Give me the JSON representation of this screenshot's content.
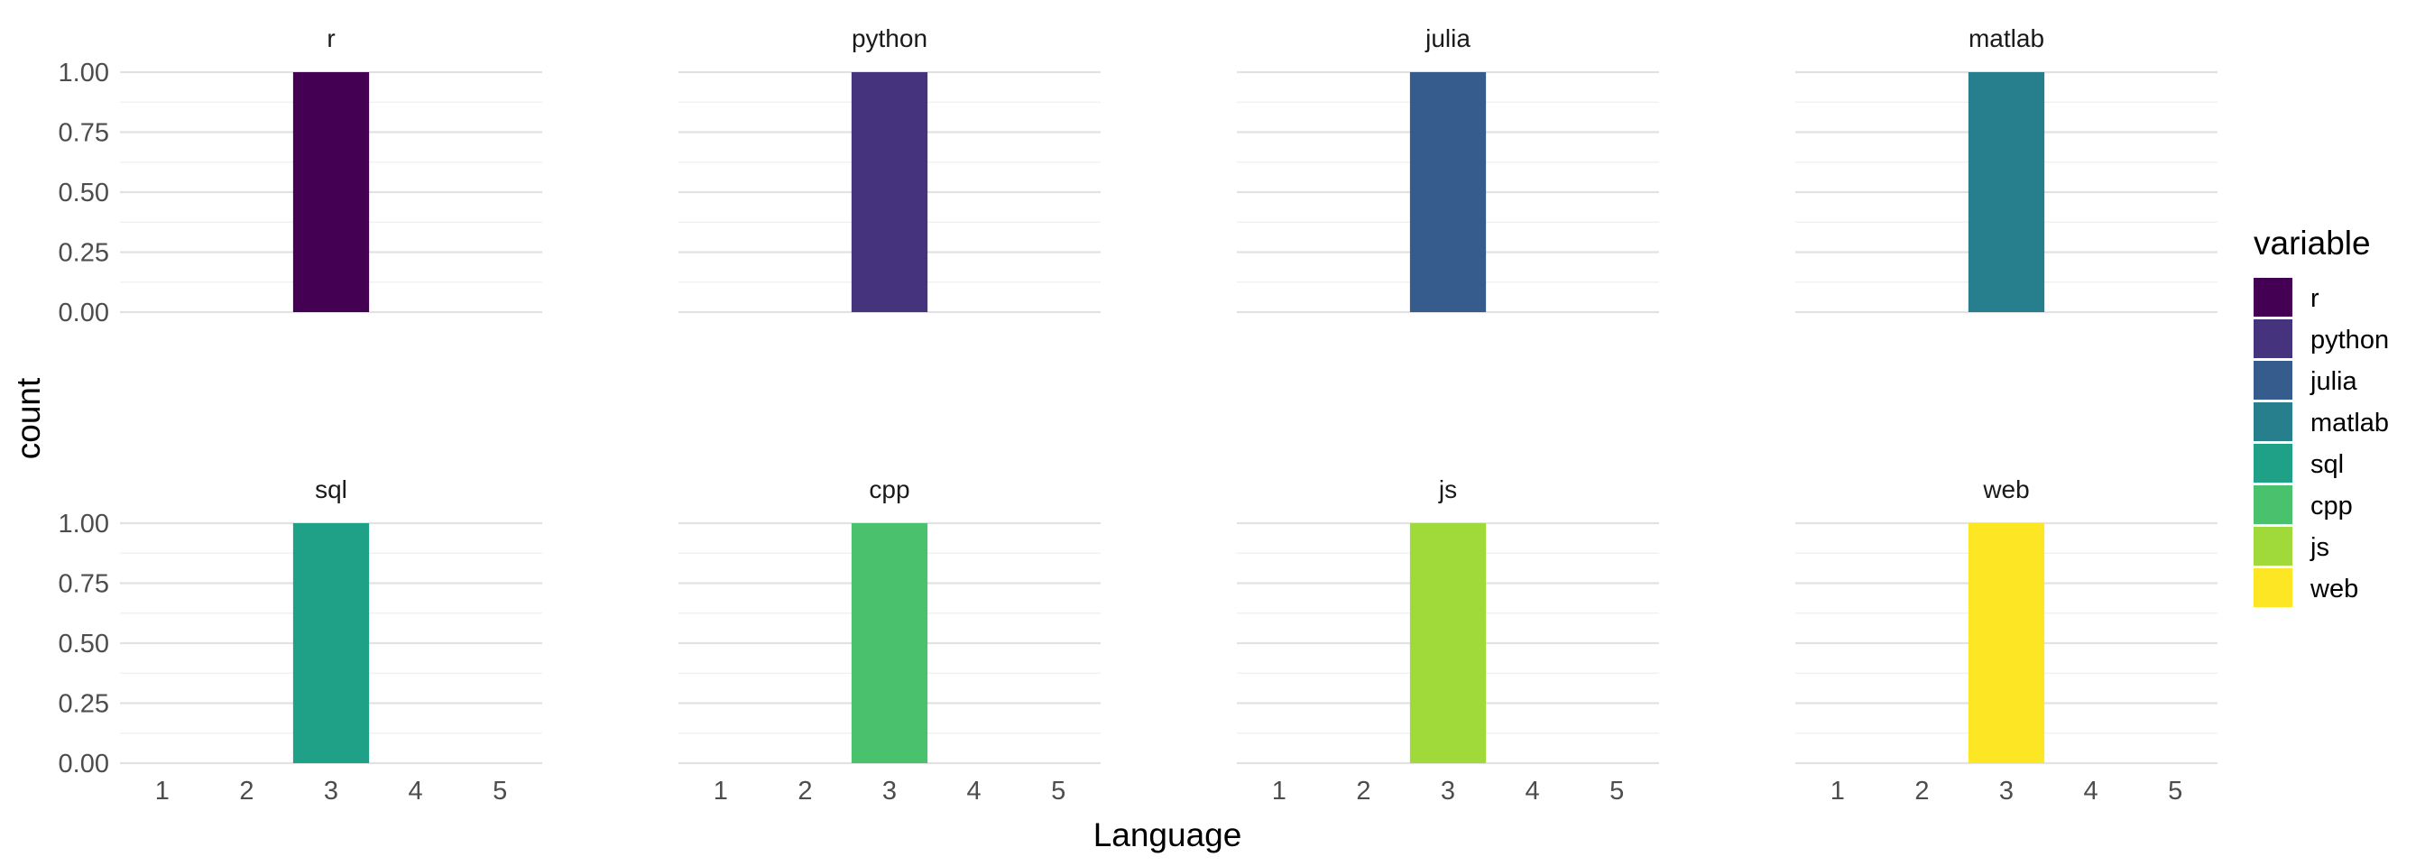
{
  "chart_data": {
    "type": "bar",
    "facet_layout": "2 rows x 4 columns",
    "xlabel": "Language",
    "ylabel": "count",
    "x_ticks": [
      "1",
      "2",
      "3",
      "4",
      "5"
    ],
    "y_ticks": [
      "0.00",
      "0.25",
      "0.50",
      "0.75",
      "1.00"
    ],
    "ylim": [
      0,
      1
    ],
    "xlim": [
      0.5,
      5.5
    ],
    "grid": true,
    "legend": {
      "title": "variable",
      "placement": "right",
      "entries": [
        {
          "label": "r",
          "color": "#440154"
        },
        {
          "label": "python",
          "color": "#46337E"
        },
        {
          "label": "julia",
          "color": "#365C8D"
        },
        {
          "label": "matlab",
          "color": "#277F8E"
        },
        {
          "label": "sql",
          "color": "#1FA187"
        },
        {
          "label": "cpp",
          "color": "#4AC16D"
        },
        {
          "label": "js",
          "color": "#9FDA3A"
        },
        {
          "label": "web",
          "color": "#FDE725"
        }
      ]
    },
    "panels": [
      {
        "title": "r",
        "color": "#440154",
        "bars": [
          {
            "x": 3,
            "count": 1
          }
        ]
      },
      {
        "title": "python",
        "color": "#46337E",
        "bars": [
          {
            "x": 3,
            "count": 1
          }
        ]
      },
      {
        "title": "julia",
        "color": "#365C8D",
        "bars": [
          {
            "x": 3,
            "count": 1
          }
        ]
      },
      {
        "title": "matlab",
        "color": "#277F8E",
        "bars": [
          {
            "x": 3,
            "count": 1
          }
        ]
      },
      {
        "title": "sql",
        "color": "#1FA187",
        "bars": [
          {
            "x": 3,
            "count": 1
          }
        ]
      },
      {
        "title": "cpp",
        "color": "#4AC16D",
        "bars": [
          {
            "x": 3,
            "count": 1
          }
        ]
      },
      {
        "title": "js",
        "color": "#9FDA3A",
        "bars": [
          {
            "x": 3,
            "count": 1
          }
        ]
      },
      {
        "title": "web",
        "color": "#FDE725",
        "bars": [
          {
            "x": 3,
            "count": 1
          }
        ]
      }
    ]
  }
}
